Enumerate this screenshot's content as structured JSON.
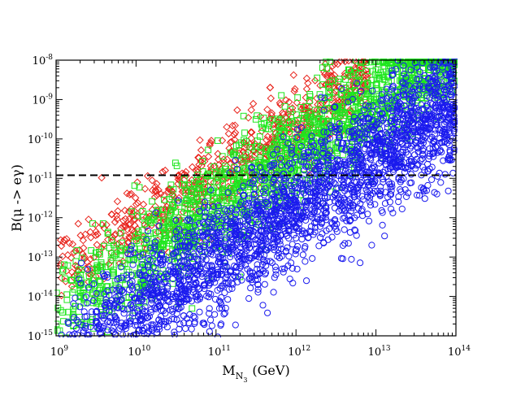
{
  "chart_data": {
    "type": "scatter",
    "title": "",
    "xlabel": {
      "main": "M",
      "sub": "N",
      "subsub": "3",
      "unit": "(GeV)"
    },
    "ylabel": "B(μ -> eγ)",
    "x_scale": "log",
    "y_scale": "log",
    "xlim": [
      1000000000.0,
      100000000000000.0
    ],
    "ylim": [
      1e-15,
      1e-08
    ],
    "x_tick_exponents": [
      "9",
      "10",
      "11",
      "12",
      "13",
      "14"
    ],
    "y_tick_exponents": [
      "-15",
      "-14",
      "-13",
      "-12",
      "-11",
      "-10",
      "-9",
      "-8"
    ],
    "tick_base": "10",
    "reference_line": {
      "y": 1.2e-11,
      "style": "dashed",
      "color": "#000000"
    },
    "series": [
      {
        "name": "red diamonds",
        "marker": "diamond",
        "color": "#e8221a",
        "approx_count": 700,
        "trend": {
          "slope": 1.25,
          "intercept_at_x9": -13.4,
          "spread": 0.5,
          "x_log_range": [
            9.0,
            12.9
          ]
        }
      },
      {
        "name": "green squares",
        "marker": "square",
        "color": "#1ee61e",
        "approx_count": 1800,
        "trend": {
          "slope": 1.35,
          "intercept_at_x9": -14.4,
          "spread": 0.65,
          "x_log_range": [
            9.0,
            14.0
          ]
        }
      },
      {
        "name": "blue circles",
        "marker": "circle",
        "color": "#1a1aee",
        "approx_count": 2600,
        "trend": {
          "slope": 1.3,
          "intercept_at_x9": -15.6,
          "spread": 0.75,
          "x_log_range": [
            9.05,
            14.0
          ]
        }
      }
    ]
  }
}
